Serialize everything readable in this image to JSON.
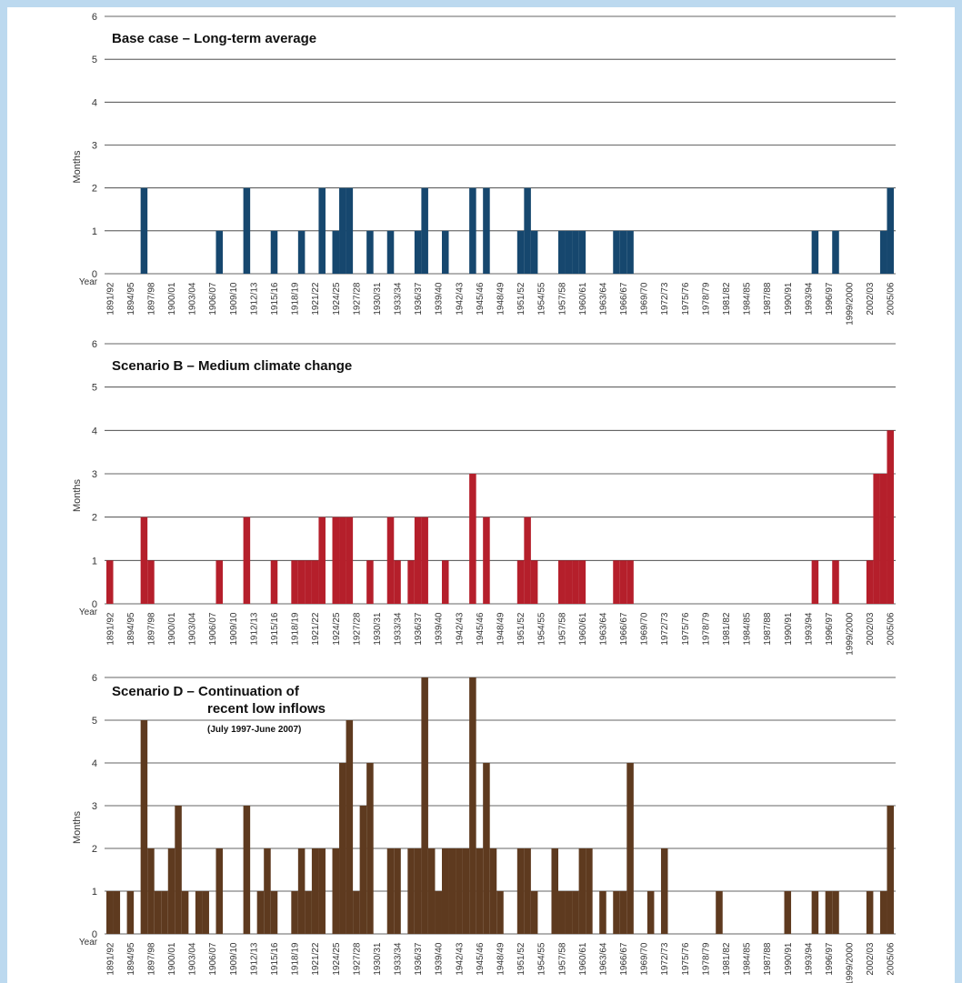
{
  "chart_data": [
    {
      "type": "bar",
      "title": "Base case – Long-term average",
      "y_label": "Months",
      "x_label": "Year",
      "color": "#16476e",
      "ylim": [
        0,
        6
      ],
      "yticks": [
        0,
        1,
        2,
        3,
        4,
        5,
        6
      ],
      "grid": true,
      "categories": [
        "1891/92",
        null,
        null,
        "1894/95",
        null,
        null,
        "1897/98",
        null,
        null,
        "1900/01",
        null,
        null,
        "1903/04",
        null,
        null,
        "1906/07",
        null,
        null,
        "1909/10",
        null,
        null,
        "1912/13",
        null,
        null,
        "1915/16",
        null,
        null,
        "1918/19",
        null,
        null,
        "1921/22",
        null,
        null,
        "1924/25",
        null,
        null,
        "1927/28",
        null,
        null,
        "1930/31",
        null,
        null,
        "1933/34",
        null,
        null,
        "1936/37",
        null,
        null,
        "1939/40",
        null,
        null,
        "1942/43",
        null,
        null,
        "1945/46",
        null,
        null,
        "1948/49",
        null,
        null,
        "1951/52",
        null,
        null,
        "1954/55",
        null,
        null,
        "1957/58",
        null,
        null,
        "1960/61",
        null,
        null,
        "1963/64",
        null,
        null,
        "1966/67",
        null,
        null,
        "1969/70",
        null,
        null,
        "1972/73",
        null,
        null,
        "1975/76",
        null,
        null,
        "1978/79",
        null,
        null,
        "1981/82",
        null,
        null,
        "1984/85",
        null,
        null,
        "1987/88",
        null,
        null,
        "1990/91",
        null,
        null,
        "1993/94",
        null,
        null,
        "1996/97",
        null,
        null,
        "1999/2000",
        null,
        null,
        "2002/03",
        null,
        null,
        "2005/06"
      ],
      "values": [
        0,
        0,
        0,
        0,
        0,
        2,
        0,
        0,
        0,
        0,
        0,
        0,
        0,
        0,
        0,
        0,
        1,
        0,
        0,
        0,
        2,
        0,
        0,
        0,
        1,
        0,
        0,
        0,
        1,
        0,
        0,
        2,
        0,
        1,
        2,
        2,
        0,
        0,
        1,
        0,
        0,
        1,
        0,
        0,
        0,
        1,
        2,
        0,
        0,
        1,
        0,
        0,
        0,
        2,
        0,
        2,
        0,
        0,
        0,
        0,
        1,
        2,
        1,
        0,
        0,
        0,
        1,
        1,
        1,
        1,
        0,
        0,
        0,
        0,
        1,
        1,
        1,
        0,
        0,
        0,
        0,
        0,
        0,
        0,
        0,
        0,
        0,
        0,
        0,
        0,
        0,
        0,
        0,
        0,
        0,
        0,
        0,
        0,
        0,
        0,
        0,
        0,
        0,
        1,
        0,
        0,
        1,
        0,
        0,
        0,
        0,
        0,
        0,
        1,
        2
      ]
    },
    {
      "type": "bar",
      "title": "Scenario B – Medium climate change",
      "y_label": "Months",
      "x_label": "Year",
      "color": "#b51f2b",
      "ylim": [
        0,
        6
      ],
      "yticks": [
        0,
        1,
        2,
        3,
        4,
        5,
        6
      ],
      "grid": true,
      "categories": [
        "1891/92",
        null,
        null,
        "1894/95",
        null,
        null,
        "1897/98",
        null,
        null,
        "1900/01",
        null,
        null,
        "1903/04",
        null,
        null,
        "1906/07",
        null,
        null,
        "1909/10",
        null,
        null,
        "1912/13",
        null,
        null,
        "1915/16",
        null,
        null,
        "1918/19",
        null,
        null,
        "1921/22",
        null,
        null,
        "1924/25",
        null,
        null,
        "1927/28",
        null,
        null,
        "1930/31",
        null,
        null,
        "1933/34",
        null,
        null,
        "1936/37",
        null,
        null,
        "1939/40",
        null,
        null,
        "1942/43",
        null,
        null,
        "1945/46",
        null,
        null,
        "1948/49",
        null,
        null,
        "1951/52",
        null,
        null,
        "1954/55",
        null,
        null,
        "1957/58",
        null,
        null,
        "1960/61",
        null,
        null,
        "1963/64",
        null,
        null,
        "1966/67",
        null,
        null,
        "1969/70",
        null,
        null,
        "1972/73",
        null,
        null,
        "1975/76",
        null,
        null,
        "1978/79",
        null,
        null,
        "1981/82",
        null,
        null,
        "1984/85",
        null,
        null,
        "1987/88",
        null,
        null,
        "1990/91",
        null,
        null,
        "1993/94",
        null,
        null,
        "1996/97",
        null,
        null,
        "1999/2000",
        null,
        null,
        "2002/03",
        null,
        null,
        "2005/06"
      ],
      "values": [
        1,
        0,
        0,
        0,
        0,
        2,
        1,
        0,
        0,
        0,
        0,
        0,
        0,
        0,
        0,
        0,
        1,
        0,
        0,
        0,
        2,
        0,
        0,
        0,
        1,
        0,
        0,
        1,
        1,
        1,
        1,
        2,
        0,
        2,
        2,
        2,
        0,
        0,
        1,
        0,
        0,
        2,
        1,
        0,
        1,
        2,
        2,
        0,
        0,
        1,
        0,
        0,
        0,
        3,
        0,
        2,
        0,
        0,
        0,
        0,
        1,
        2,
        1,
        0,
        0,
        0,
        1,
        1,
        1,
        1,
        0,
        0,
        0,
        0,
        1,
        1,
        1,
        0,
        0,
        0,
        0,
        0,
        0,
        0,
        0,
        0,
        0,
        0,
        0,
        0,
        0,
        0,
        0,
        0,
        0,
        0,
        0,
        0,
        0,
        0,
        0,
        0,
        0,
        1,
        0,
        0,
        1,
        0,
        0,
        0,
        0,
        1,
        3,
        3,
        4
      ]
    },
    {
      "type": "bar",
      "title": [
        "Scenario D – Continuation of",
        "recent low inflows"
      ],
      "subtitle": "(July 1997-June 2007)",
      "y_label": "Months",
      "x_label": "Year",
      "color": "#5e3a1f",
      "ylim": [
        0,
        6
      ],
      "yticks": [
        0,
        1,
        2,
        3,
        4,
        5,
        6
      ],
      "grid": true,
      "categories": [
        "1891/92",
        null,
        null,
        "1894/95",
        null,
        null,
        "1897/98",
        null,
        null,
        "1900/01",
        null,
        null,
        "1903/04",
        null,
        null,
        "1906/07",
        null,
        null,
        "1909/10",
        null,
        null,
        "1912/13",
        null,
        null,
        "1915/16",
        null,
        null,
        "1918/19",
        null,
        null,
        "1921/22",
        null,
        null,
        "1924/25",
        null,
        null,
        "1927/28",
        null,
        null,
        "1930/31",
        null,
        null,
        "1933/34",
        null,
        null,
        "1936/37",
        null,
        null,
        "1939/40",
        null,
        null,
        "1942/43",
        null,
        null,
        "1945/46",
        null,
        null,
        "1948/49",
        null,
        null,
        "1951/52",
        null,
        null,
        "1954/55",
        null,
        null,
        "1957/58",
        null,
        null,
        "1960/61",
        null,
        null,
        "1963/64",
        null,
        null,
        "1966/67",
        null,
        null,
        "1969/70",
        null,
        null,
        "1972/73",
        null,
        null,
        "1975/76",
        null,
        null,
        "1978/79",
        null,
        null,
        "1981/82",
        null,
        null,
        "1984/85",
        null,
        null,
        "1987/88",
        null,
        null,
        "1990/91",
        null,
        null,
        "1993/94",
        null,
        null,
        "1996/97",
        null,
        null,
        "1999/2000",
        null,
        null,
        "2002/03",
        null,
        null,
        "2005/06"
      ],
      "values": [
        1,
        1,
        0,
        1,
        0,
        5,
        2,
        1,
        1,
        2,
        3,
        1,
        0,
        1,
        1,
        0,
        2,
        0,
        0,
        0,
        3,
        0,
        1,
        2,
        1,
        0,
        0,
        1,
        2,
        1,
        2,
        2,
        0,
        2,
        4,
        5,
        1,
        3,
        4,
        0,
        0,
        2,
        2,
        0,
        2,
        2,
        6,
        2,
        1,
        2,
        2,
        2,
        2,
        6,
        2,
        4,
        2,
        1,
        0,
        0,
        2,
        2,
        1,
        0,
        0,
        2,
        1,
        1,
        1,
        2,
        2,
        0,
        1,
        0,
        1,
        1,
        4,
        0,
        0,
        1,
        0,
        2,
        0,
        0,
        0,
        0,
        0,
        0,
        0,
        1,
        0,
        0,
        0,
        0,
        0,
        0,
        0,
        0,
        0,
        1,
        0,
        0,
        0,
        1,
        0,
        1,
        1,
        0,
        0,
        0,
        0,
        1,
        0,
        1,
        3
      ]
    }
  ]
}
